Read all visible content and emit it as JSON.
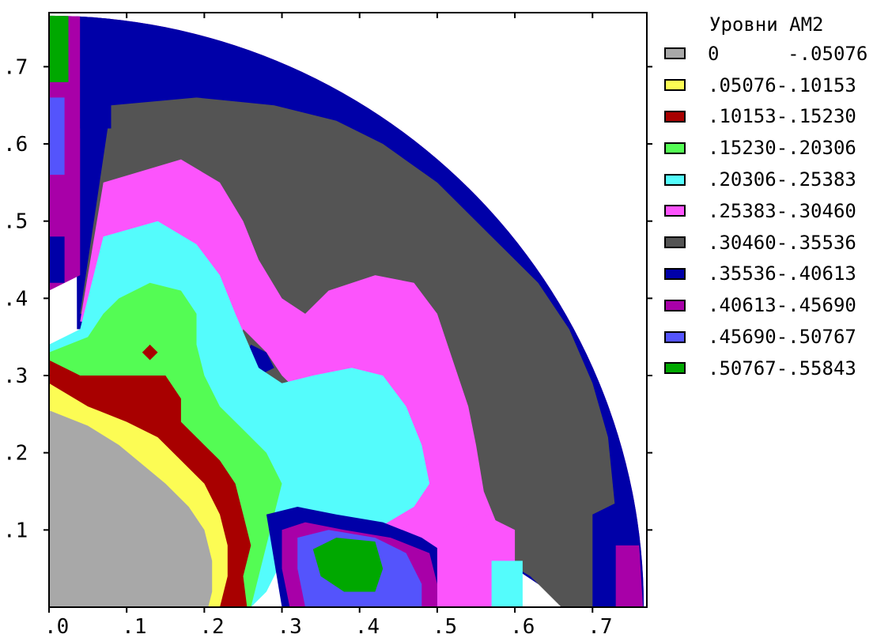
{
  "chart_data": {
    "type": "heatmap",
    "legend_title": "Уровни АМ2",
    "xlim": [
      0,
      0.77
    ],
    "ylim": [
      0,
      0.77
    ],
    "x_ticks": [
      ".0",
      ".1",
      ".2",
      ".3",
      ".4",
      ".5",
      ".6",
      ".7"
    ],
    "y_ticks": [
      ".1",
      ".2",
      ".3",
      ".4",
      ".5",
      ".6",
      ".7"
    ],
    "legend_placement": "right",
    "levels": [
      {
        "label": "0      -.05076",
        "range": [
          0,
          0.05076
        ],
        "color": "#a8a8a8"
      },
      {
        "label": ".05076-.10153",
        "range": [
          0.05076,
          0.10153
        ],
        "color": "#fcfc54"
      },
      {
        "label": ".10153-.15230",
        "range": [
          0.10153,
          0.1523
        ],
        "color": "#a80000"
      },
      {
        "label": ".15230-.20306",
        "range": [
          0.1523,
          0.20306
        ],
        "color": "#54fc54"
      },
      {
        "label": ".20306-.25383",
        "range": [
          0.20306,
          0.25383
        ],
        "color": "#54fcfc"
      },
      {
        "label": ".25383-.30460",
        "range": [
          0.25383,
          0.3046
        ],
        "color": "#fc54fc"
      },
      {
        "label": ".30460-.35536",
        "range": [
          0.3046,
          0.35536
        ],
        "color": "#545454"
      },
      {
        "label": ".35536-.40613",
        "range": [
          0.35536,
          0.40613
        ],
        "color": "#0000a8"
      },
      {
        "label": ".40613-.45690",
        "range": [
          0.40613,
          0.4569
        ],
        "color": "#a800a8"
      },
      {
        "label": ".45690-.50767",
        "range": [
          0.4569,
          0.50767
        ],
        "color": "#5454fc"
      },
      {
        "label": ".50767-.55843",
        "range": [
          0.50767,
          0.55843
        ],
        "color": "#00a800"
      }
    ],
    "regions": [
      {
        "level": 8,
        "poly": [
          [
            0,
            0.77
          ],
          [
            0.77,
            0.77
          ],
          [
            0.77,
            0
          ]
        ]
      },
      {
        "level": 7,
        "poly": [
          [
            0.035,
            0.77
          ],
          [
            0.23,
            0.77
          ],
          [
            0.32,
            0.745
          ],
          [
            0.4,
            0.7
          ],
          [
            0.45,
            0.66
          ],
          [
            0.55,
            0.58
          ],
          [
            0.62,
            0.5
          ],
          [
            0.68,
            0.42
          ],
          [
            0.72,
            0.32
          ],
          [
            0.745,
            0.22
          ],
          [
            0.77,
            0.12
          ],
          [
            0.77,
            0
          ],
          [
            0.68,
            0
          ],
          [
            0.63,
            0.03
          ],
          [
            0.57,
            0.07
          ],
          [
            0.52,
            0.1
          ],
          [
            0.45,
            0.13
          ],
          [
            0.38,
            0.12
          ],
          [
            0.32,
            0.12
          ],
          [
            0.28,
            0.1
          ],
          [
            0.28,
            0.36
          ],
          [
            0.036,
            0.36
          ]
        ]
      },
      {
        "level": 6,
        "poly": [
          [
            0.08,
            0.65
          ],
          [
            0.19,
            0.66
          ],
          [
            0.29,
            0.65
          ],
          [
            0.37,
            0.63
          ],
          [
            0.43,
            0.6
          ],
          [
            0.5,
            0.55
          ],
          [
            0.57,
            0.48
          ],
          [
            0.63,
            0.42
          ],
          [
            0.67,
            0.36
          ],
          [
            0.7,
            0.29
          ],
          [
            0.72,
            0.22
          ],
          [
            0.73,
            0.12
          ],
          [
            0.735,
            0
          ],
          [
            0.66,
            0
          ],
          [
            0.62,
            0.04
          ],
          [
            0.57,
            0.07
          ],
          [
            0.5,
            0.1
          ],
          [
            0.42,
            0.13
          ],
          [
            0.35,
            0.13
          ],
          [
            0.29,
            0.11
          ],
          [
            0.26,
            0.36
          ],
          [
            0.04,
            0.38
          ]
        ]
      },
      {
        "level": 8,
        "poly": [
          [
            0.0,
            0.41
          ],
          [
            0.04,
            0.43
          ],
          [
            0.04,
            0.77
          ],
          [
            0.0,
            0.77
          ]
        ]
      },
      {
        "level": 7,
        "poly": [
          [
            0.04,
            0.62
          ],
          [
            0.08,
            0.62
          ],
          [
            0.08,
            0.77
          ],
          [
            0.04,
            0.77
          ]
        ]
      },
      {
        "level": 5,
        "poly": [
          [
            0.07,
            0.55
          ],
          [
            0.17,
            0.58
          ],
          [
            0.22,
            0.55
          ],
          [
            0.25,
            0.5
          ],
          [
            0.27,
            0.45
          ],
          [
            0.3,
            0.4
          ],
          [
            0.33,
            0.38
          ],
          [
            0.36,
            0.41
          ],
          [
            0.42,
            0.43
          ],
          [
            0.47,
            0.42
          ],
          [
            0.5,
            0.38
          ],
          [
            0.52,
            0.32
          ],
          [
            0.54,
            0.26
          ],
          [
            0.55,
            0.21
          ],
          [
            0.56,
            0.15
          ],
          [
            0.58,
            0.1
          ],
          [
            0.6,
            0.02
          ],
          [
            0.57,
            0
          ],
          [
            0.46,
            0
          ],
          [
            0.4,
            0.05
          ],
          [
            0.35,
            0.1
          ],
          [
            0.3,
            0.12
          ],
          [
            0.27,
            0.27
          ],
          [
            0.24,
            0.31
          ],
          [
            0.23,
            0.35
          ],
          [
            0.04,
            0.37
          ]
        ]
      },
      {
        "level": 6,
        "poly": [
          [
            0.25,
            0.36
          ],
          [
            0.28,
            0.33
          ],
          [
            0.3,
            0.3
          ],
          [
            0.33,
            0.27
          ],
          [
            0.3,
            0.24
          ],
          [
            0.27,
            0.26
          ],
          [
            0.24,
            0.3
          ]
        ]
      },
      {
        "level": 7,
        "poly": [
          [
            0.26,
            0.34
          ],
          [
            0.28,
            0.33
          ],
          [
            0.29,
            0.31
          ],
          [
            0.27,
            0.3
          ],
          [
            0.25,
            0.32
          ]
        ]
      },
      {
        "level": 4,
        "poly": [
          [
            0.07,
            0.48
          ],
          [
            0.14,
            0.5
          ],
          [
            0.19,
            0.47
          ],
          [
            0.22,
            0.43
          ],
          [
            0.24,
            0.38
          ],
          [
            0.27,
            0.31
          ],
          [
            0.3,
            0.29
          ],
          [
            0.34,
            0.3
          ],
          [
            0.39,
            0.31
          ],
          [
            0.43,
            0.3
          ],
          [
            0.46,
            0.26
          ],
          [
            0.48,
            0.21
          ],
          [
            0.49,
            0.16
          ],
          [
            0.47,
            0.13
          ],
          [
            0.42,
            0.1
          ],
          [
            0.38,
            0.1
          ],
          [
            0.33,
            0.1
          ],
          [
            0.3,
            0.06
          ],
          [
            0.28,
            0.02
          ],
          [
            0.26,
            0.0
          ],
          [
            0.0,
            0.0
          ],
          [
            0.0,
            0.34
          ],
          [
            0.04,
            0.36
          ]
        ]
      },
      {
        "level": 3,
        "poly": [
          [
            0.09,
            0.4
          ],
          [
            0.13,
            0.42
          ],
          [
            0.17,
            0.41
          ],
          [
            0.19,
            0.38
          ],
          [
            0.19,
            0.34
          ],
          [
            0.2,
            0.3
          ],
          [
            0.22,
            0.26
          ],
          [
            0.25,
            0.23
          ],
          [
            0.28,
            0.2
          ],
          [
            0.3,
            0.16
          ],
          [
            0.29,
            0.12
          ],
          [
            0.28,
            0.08
          ],
          [
            0.27,
            0.04
          ],
          [
            0.26,
            0.0
          ],
          [
            0.0,
            0.0
          ],
          [
            0.0,
            0.33
          ],
          [
            0.05,
            0.35
          ],
          [
            0.07,
            0.38
          ]
        ]
      },
      {
        "level": 2,
        "poly": [
          [
            0.0,
            0.32
          ],
          [
            0.04,
            0.3
          ],
          [
            0.08,
            0.3
          ],
          [
            0.12,
            0.3
          ],
          [
            0.15,
            0.3
          ],
          [
            0.17,
            0.27
          ],
          [
            0.17,
            0.24
          ],
          [
            0.19,
            0.22
          ],
          [
            0.22,
            0.19
          ],
          [
            0.24,
            0.16
          ],
          [
            0.25,
            0.12
          ],
          [
            0.26,
            0.08
          ],
          [
            0.25,
            0.04
          ],
          [
            0.255,
            0.0
          ],
          [
            0.0,
            0.0
          ]
        ]
      },
      {
        "level": 1,
        "poly": [
          [
            0.0,
            0.29
          ],
          [
            0.05,
            0.26
          ],
          [
            0.1,
            0.24
          ],
          [
            0.14,
            0.22
          ],
          [
            0.17,
            0.19
          ],
          [
            0.2,
            0.16
          ],
          [
            0.22,
            0.12
          ],
          [
            0.23,
            0.08
          ],
          [
            0.23,
            0.04
          ],
          [
            0.22,
            0.0
          ],
          [
            0.0,
            0.0
          ]
        ]
      },
      {
        "level": 0,
        "poly": [
          [
            0.0,
            0.255
          ],
          [
            0.05,
            0.235
          ],
          [
            0.09,
            0.21
          ],
          [
            0.12,
            0.185
          ],
          [
            0.15,
            0.16
          ],
          [
            0.18,
            0.13
          ],
          [
            0.2,
            0.1
          ],
          [
            0.21,
            0.06
          ],
          [
            0.21,
            0.02
          ],
          [
            0.205,
            0.0
          ],
          [
            0.0,
            0.0
          ]
        ]
      },
      {
        "level": 7,
        "poly": [
          [
            0.28,
            0.12
          ],
          [
            0.32,
            0.13
          ],
          [
            0.37,
            0.12
          ],
          [
            0.43,
            0.11
          ],
          [
            0.48,
            0.09
          ],
          [
            0.51,
            0.07
          ],
          [
            0.52,
            0.03
          ],
          [
            0.52,
            0.0
          ],
          [
            0.3,
            0.0
          ],
          [
            0.29,
            0.06
          ]
        ]
      },
      {
        "level": 8,
        "poly": [
          [
            0.3,
            0.1
          ],
          [
            0.33,
            0.11
          ],
          [
            0.38,
            0.1
          ],
          [
            0.44,
            0.09
          ],
          [
            0.49,
            0.07
          ],
          [
            0.5,
            0.03
          ],
          [
            0.5,
            0.0
          ],
          [
            0.31,
            0.0
          ],
          [
            0.3,
            0.05
          ]
        ]
      },
      {
        "level": 9,
        "poly": [
          [
            0.32,
            0.09
          ],
          [
            0.36,
            0.1
          ],
          [
            0.42,
            0.09
          ],
          [
            0.46,
            0.07
          ],
          [
            0.48,
            0.03
          ],
          [
            0.48,
            0.0
          ],
          [
            0.33,
            0.0
          ],
          [
            0.32,
            0.05
          ]
        ]
      },
      {
        "level": 10,
        "poly": [
          [
            0.34,
            0.075
          ],
          [
            0.37,
            0.09
          ],
          [
            0.42,
            0.085
          ],
          [
            0.43,
            0.05
          ],
          [
            0.42,
            0.02
          ],
          [
            0.38,
            0.02
          ],
          [
            0.35,
            0.04
          ]
        ]
      },
      {
        "level": 5,
        "poly": [
          [
            0.5,
            0.0
          ],
          [
            0.5,
            0.08
          ],
          [
            0.56,
            0.12
          ],
          [
            0.6,
            0.1
          ],
          [
            0.6,
            0.0
          ]
        ]
      },
      {
        "level": 4,
        "poly": [
          [
            0.57,
            0.0
          ],
          [
            0.57,
            0.06
          ],
          [
            0.61,
            0.06
          ],
          [
            0.61,
            0.0
          ]
        ]
      },
      {
        "level": 7,
        "poly": [
          [
            0.7,
            0.0
          ],
          [
            0.7,
            0.12
          ],
          [
            0.74,
            0.14
          ],
          [
            0.74,
            0.0
          ]
        ]
      },
      {
        "level": 8,
        "poly": [
          [
            0.73,
            0.0
          ],
          [
            0.73,
            0.08
          ],
          [
            0.76,
            0.08
          ],
          [
            0.765,
            0.0
          ]
        ]
      },
      {
        "level": 9,
        "poly": [
          [
            0.0,
            0.56
          ],
          [
            0.02,
            0.56
          ],
          [
            0.02,
            0.66
          ],
          [
            0.0,
            0.66
          ]
        ]
      },
      {
        "level": 8,
        "poly": [
          [
            0.0,
            0.52
          ],
          [
            0.02,
            0.52
          ],
          [
            0.02,
            0.56
          ],
          [
            0.0,
            0.56
          ]
        ]
      },
      {
        "level": 7,
        "poly": [
          [
            0.0,
            0.42
          ],
          [
            0.02,
            0.42
          ],
          [
            0.02,
            0.48
          ],
          [
            0.0,
            0.48
          ]
        ]
      },
      {
        "level": 10,
        "poly": [
          [
            0.0,
            0.68
          ],
          [
            0.025,
            0.68
          ],
          [
            0.025,
            0.77
          ],
          [
            0.0,
            0.77
          ]
        ]
      },
      {
        "level": 2,
        "poly": [
          [
            0.12,
            0.33
          ],
          [
            0.13,
            0.34
          ],
          [
            0.14,
            0.33
          ],
          [
            0.13,
            0.32
          ]
        ]
      }
    ]
  }
}
